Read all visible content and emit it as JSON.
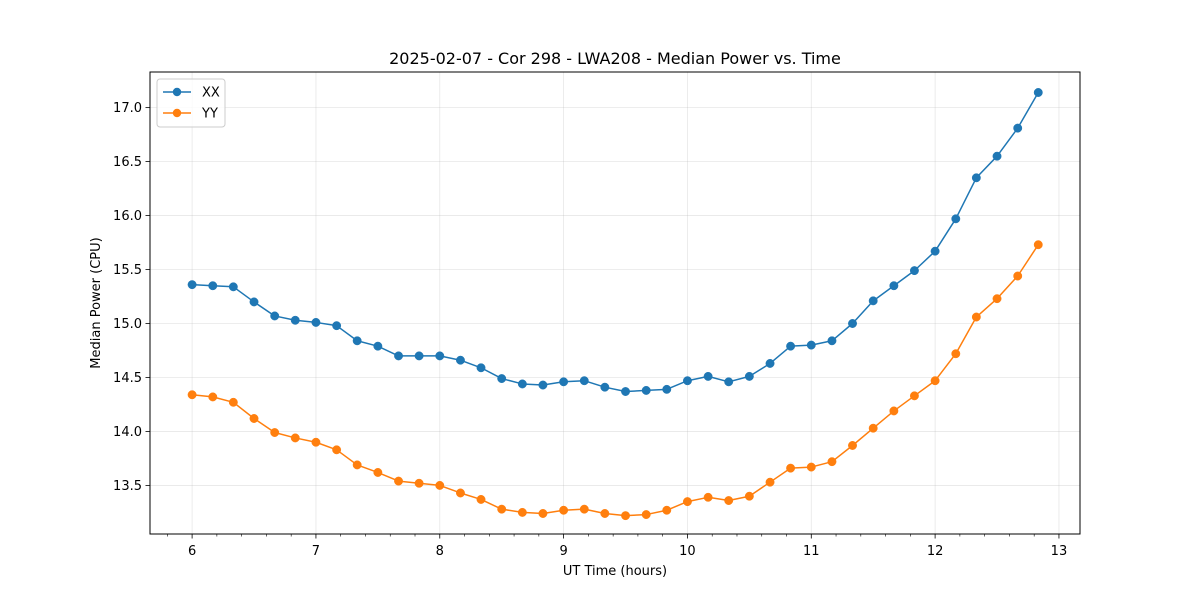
{
  "chart_data": {
    "type": "line",
    "title": "2025-02-07 - Cor 298 - LWA208 - Median Power vs. Time",
    "xlabel": "UT Time (hours)",
    "ylabel": "Median Power (CPU)",
    "xlim": [
      5.66,
      13.17
    ],
    "ylim": [
      13.05,
      17.33
    ],
    "xticks": [
      6,
      7,
      8,
      9,
      10,
      11,
      12,
      13
    ],
    "xtick_labels": [
      "6",
      "7",
      "8",
      "9",
      "10",
      "11",
      "12",
      "13"
    ],
    "yticks": [
      13.5,
      14.0,
      14.5,
      15.0,
      15.5,
      16.0,
      16.5,
      17.0
    ],
    "ytick_labels": [
      "13.5",
      "14.0",
      "14.5",
      "15.0",
      "15.5",
      "16.0",
      "16.5",
      "17.0"
    ],
    "x_minor_step": 0.2,
    "grid": true,
    "legend_position": "upper-left",
    "x": [
      6.0,
      6.167,
      6.333,
      6.5,
      6.667,
      6.833,
      7.0,
      7.167,
      7.333,
      7.5,
      7.667,
      7.833,
      8.0,
      8.167,
      8.333,
      8.5,
      8.667,
      8.833,
      9.0,
      9.167,
      9.333,
      9.5,
      9.667,
      9.833,
      10.0,
      10.167,
      10.333,
      10.5,
      10.667,
      10.833,
      11.0,
      11.167,
      11.333,
      11.5,
      11.667,
      11.833,
      12.0,
      12.167,
      12.333,
      12.5,
      12.667,
      12.833
    ],
    "series": [
      {
        "name": "XX",
        "color": "#1f77b4",
        "values": [
          15.36,
          15.35,
          15.34,
          15.2,
          15.07,
          15.03,
          15.01,
          14.98,
          14.84,
          14.79,
          14.7,
          14.7,
          14.7,
          14.66,
          14.59,
          14.49,
          14.44,
          14.43,
          14.46,
          14.47,
          14.41,
          14.37,
          14.38,
          14.39,
          14.47,
          14.51,
          14.46,
          14.51,
          14.63,
          14.79,
          14.8,
          14.84,
          15.0,
          15.21,
          15.35,
          15.49,
          15.67,
          15.97,
          16.35,
          16.55,
          16.81,
          17.14
        ]
      },
      {
        "name": "YY",
        "color": "#ff7f0e",
        "values": [
          14.34,
          14.32,
          14.27,
          14.12,
          13.99,
          13.94,
          13.9,
          13.83,
          13.69,
          13.62,
          13.54,
          13.52,
          13.5,
          13.43,
          13.37,
          13.28,
          13.25,
          13.24,
          13.27,
          13.28,
          13.24,
          13.22,
          13.23,
          13.27,
          13.35,
          13.39,
          13.36,
          13.4,
          13.53,
          13.66,
          13.67,
          13.72,
          13.87,
          14.03,
          14.19,
          14.33,
          14.47,
          14.72,
          15.06,
          15.23,
          15.44,
          15.73
        ]
      }
    ]
  }
}
